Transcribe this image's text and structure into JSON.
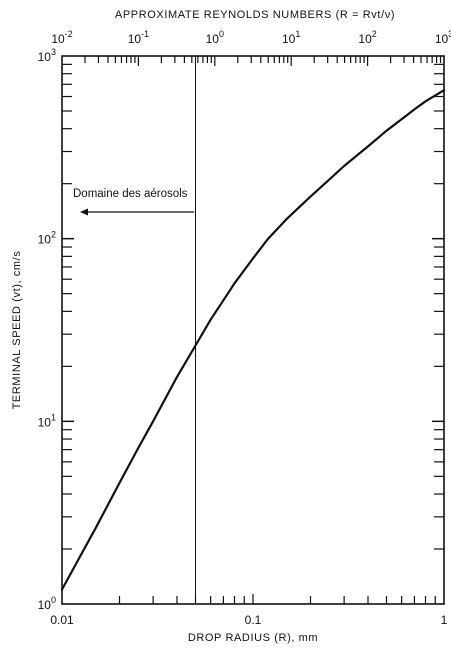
{
  "chart_data": {
    "type": "line",
    "title": "",
    "top_axis_label": "APPROXIMATE REYNOLDS NUMBERS (R = Rvt/ν)",
    "xlabel": "DROP RADIUS (R), mm",
    "ylabel": "TERMINAL SPEED (vt), cm/s",
    "xscale": "log",
    "yscale": "log",
    "xlim": [
      0.01,
      1
    ],
    "ylim": [
      1,
      1000
    ],
    "x_tick_labels": [
      "0.01",
      "0.1",
      "1"
    ],
    "y_tick_labels": [
      {
        "base": "10",
        "exp": "0"
      },
      {
        "base": "10",
        "exp": "1"
      },
      {
        "base": "10",
        "exp": "2"
      },
      {
        "base": "10",
        "exp": "3"
      }
    ],
    "top_tick_labels": [
      {
        "base": "10",
        "exp": "-2"
      },
      {
        "base": "10",
        "exp": "-1"
      },
      {
        "base": "10",
        "exp": "0"
      },
      {
        "base": "10",
        "exp": "1"
      },
      {
        "base": "10",
        "exp": "2"
      },
      {
        "base": "10",
        "exp": "3"
      }
    ],
    "grid": false,
    "series": [
      {
        "x": [
          0.01,
          0.012,
          0.015,
          0.02,
          0.025,
          0.03,
          0.04,
          0.05,
          0.06,
          0.07,
          0.08,
          0.1,
          0.12,
          0.15,
          0.2,
          0.25,
          0.3,
          0.4,
          0.5,
          0.6,
          0.7,
          0.8,
          1.0
        ],
        "y": [
          1.2,
          1.7,
          2.6,
          4.6,
          7.1,
          10,
          17.5,
          26,
          36,
          46,
          57,
          78,
          100,
          128,
          170,
          210,
          250,
          320,
          390,
          450,
          510,
          565,
          650
        ]
      }
    ],
    "annotations": [
      {
        "text": "Domaine des aérosols",
        "arrow": "left",
        "at_x": 0.05
      }
    ],
    "reference_line": {
      "x": 0.05,
      "orientation": "vertical"
    }
  }
}
